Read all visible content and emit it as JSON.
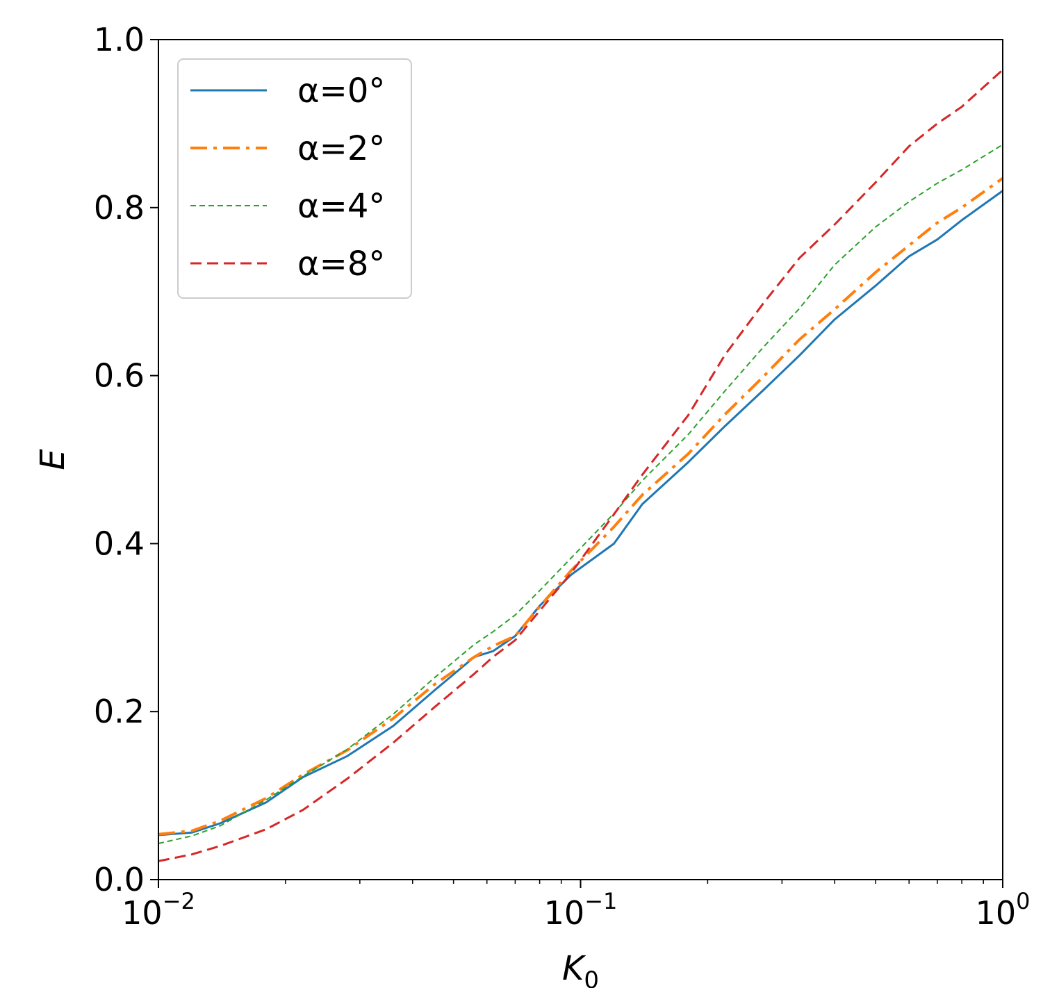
{
  "chart_data": {
    "type": "line",
    "x_scale": "log",
    "xlim": [
      0.01,
      1
    ],
    "ylim": [
      0,
      1
    ],
    "xlabel_base": "K",
    "xlabel_sub": "0",
    "ylabel": "E",
    "x_ticks": [
      {
        "value": 0.01,
        "base": "10",
        "exp": "−2"
      },
      {
        "value": 0.1,
        "base": "10",
        "exp": "−1"
      },
      {
        "value": 1,
        "base": "10",
        "exp": "0"
      }
    ],
    "y_ticks": [
      {
        "value": 0.0,
        "label": "0.0"
      },
      {
        "value": 0.2,
        "label": "0.2"
      },
      {
        "value": 0.4,
        "label": "0.4"
      },
      {
        "value": 0.6,
        "label": "0.6"
      },
      {
        "value": 0.8,
        "label": "0.8"
      },
      {
        "value": 1.0,
        "label": "1.0"
      }
    ],
    "grid": false,
    "legend_position": "top-left",
    "series": [
      {
        "name": "α=0°",
        "color": "#1f77b4",
        "dash": "solid",
        "width": 3,
        "x": [
          0.01,
          0.012,
          0.014,
          0.018,
          0.022,
          0.028,
          0.036,
          0.045,
          0.056,
          0.062,
          0.07,
          0.08,
          0.095,
          0.12,
          0.14,
          0.18,
          0.22,
          0.27,
          0.33,
          0.4,
          0.5,
          0.6,
          0.7,
          0.8,
          1.0
        ],
        "y": [
          0.053,
          0.056,
          0.067,
          0.092,
          0.122,
          0.147,
          0.183,
          0.225,
          0.265,
          0.272,
          0.29,
          0.326,
          0.363,
          0.4,
          0.447,
          0.497,
          0.54,
          0.582,
          0.624,
          0.667,
          0.707,
          0.742,
          0.762,
          0.785,
          0.82
        ]
      },
      {
        "name": "α=2°",
        "color": "#ff7f0e",
        "dash": "dashdot",
        "width": 4,
        "x": [
          0.01,
          0.012,
          0.014,
          0.018,
          0.022,
          0.028,
          0.036,
          0.045,
          0.056,
          0.062,
          0.07,
          0.08,
          0.095,
          0.12,
          0.14,
          0.18,
          0.22,
          0.27,
          0.33,
          0.4,
          0.5,
          0.6,
          0.7,
          0.8,
          1.0
        ],
        "y": [
          0.054,
          0.058,
          0.07,
          0.097,
          0.125,
          0.154,
          0.192,
          0.232,
          0.265,
          0.278,
          0.29,
          0.325,
          0.368,
          0.42,
          0.458,
          0.507,
          0.554,
          0.598,
          0.643,
          0.679,
          0.723,
          0.755,
          0.782,
          0.8,
          0.835
        ]
      },
      {
        "name": "α=4°",
        "color": "#2ca02c",
        "dash": "fine",
        "width": 2,
        "x": [
          0.01,
          0.012,
          0.014,
          0.018,
          0.022,
          0.028,
          0.036,
          0.045,
          0.056,
          0.062,
          0.07,
          0.08,
          0.095,
          0.12,
          0.14,
          0.18,
          0.22,
          0.27,
          0.33,
          0.4,
          0.5,
          0.6,
          0.7,
          0.8,
          1.0
        ],
        "y": [
          0.043,
          0.052,
          0.064,
          0.095,
          0.123,
          0.155,
          0.197,
          0.24,
          0.28,
          0.295,
          0.315,
          0.344,
          0.383,
          0.436,
          0.475,
          0.53,
          0.582,
          0.633,
          0.68,
          0.732,
          0.777,
          0.807,
          0.829,
          0.845,
          0.875
        ]
      },
      {
        "name": "α=8°",
        "color": "#d62728",
        "dash": "dashed",
        "width": 3,
        "x": [
          0.01,
          0.012,
          0.014,
          0.018,
          0.022,
          0.028,
          0.036,
          0.045,
          0.056,
          0.062,
          0.07,
          0.08,
          0.095,
          0.12,
          0.14,
          0.18,
          0.22,
          0.27,
          0.33,
          0.4,
          0.5,
          0.6,
          0.7,
          0.8,
          1.0
        ],
        "y": [
          0.022,
          0.03,
          0.04,
          0.06,
          0.083,
          0.12,
          0.163,
          0.205,
          0.245,
          0.265,
          0.285,
          0.32,
          0.365,
          0.435,
          0.482,
          0.553,
          0.625,
          0.685,
          0.74,
          0.78,
          0.83,
          0.873,
          0.9,
          0.92,
          0.964
        ]
      }
    ]
  }
}
